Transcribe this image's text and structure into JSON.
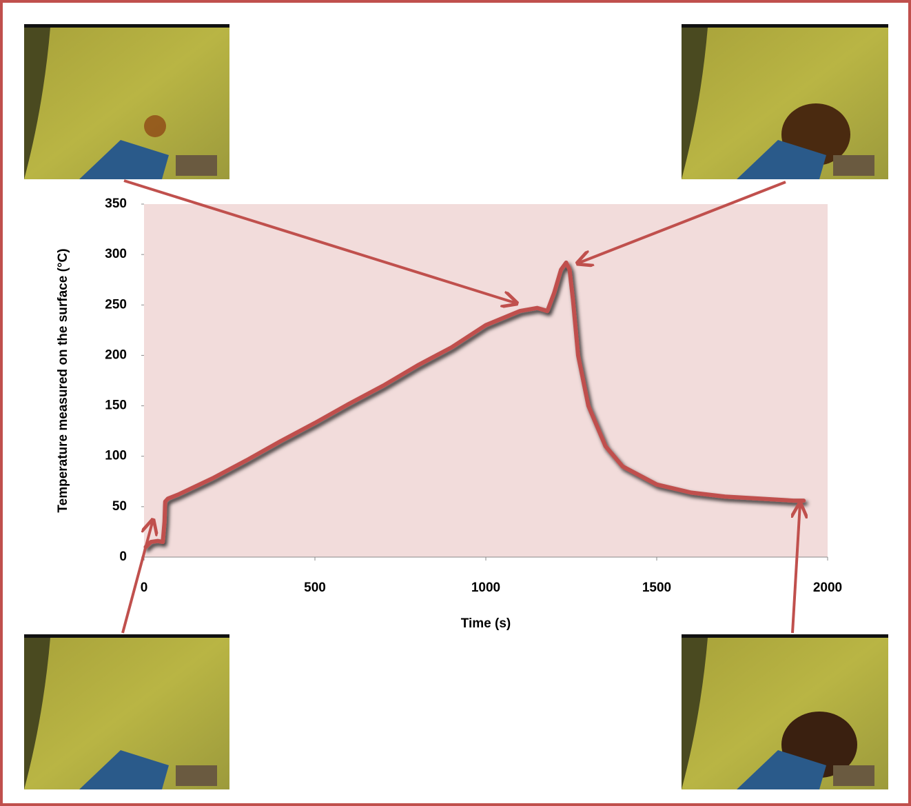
{
  "chart_data": {
    "type": "line",
    "x_label": "Time (s)",
    "y_label": "Temperature measured on the surface (°C)",
    "x": [
      5,
      20,
      40,
      55,
      60,
      62,
      70,
      100,
      200,
      300,
      400,
      500,
      600,
      700,
      800,
      900,
      1000,
      1100,
      1150,
      1180,
      1200,
      1220,
      1235,
      1245,
      1255,
      1270,
      1300,
      1350,
      1400,
      1500,
      1600,
      1700,
      1800,
      1900,
      1930
    ],
    "series": [
      {
        "color": "#c0504d",
        "values": [
          10,
          15,
          16,
          15,
          35,
          55,
          58,
          62,
          78,
          96,
          115,
          133,
          152,
          170,
          190,
          208,
          230,
          244,
          247,
          244,
          262,
          285,
          292,
          285,
          255,
          200,
          150,
          110,
          90,
          72,
          64,
          60,
          58,
          56,
          56
        ]
      }
    ],
    "xlim": [
      0,
      2000
    ],
    "xticks": [
      0,
      500,
      1000,
      1500,
      2000
    ],
    "ylim": [
      0,
      350
    ],
    "yticks": [
      0,
      50,
      100,
      150,
      200,
      250,
      300,
      350
    ],
    "plot_background": "#f2dcdb"
  }
}
